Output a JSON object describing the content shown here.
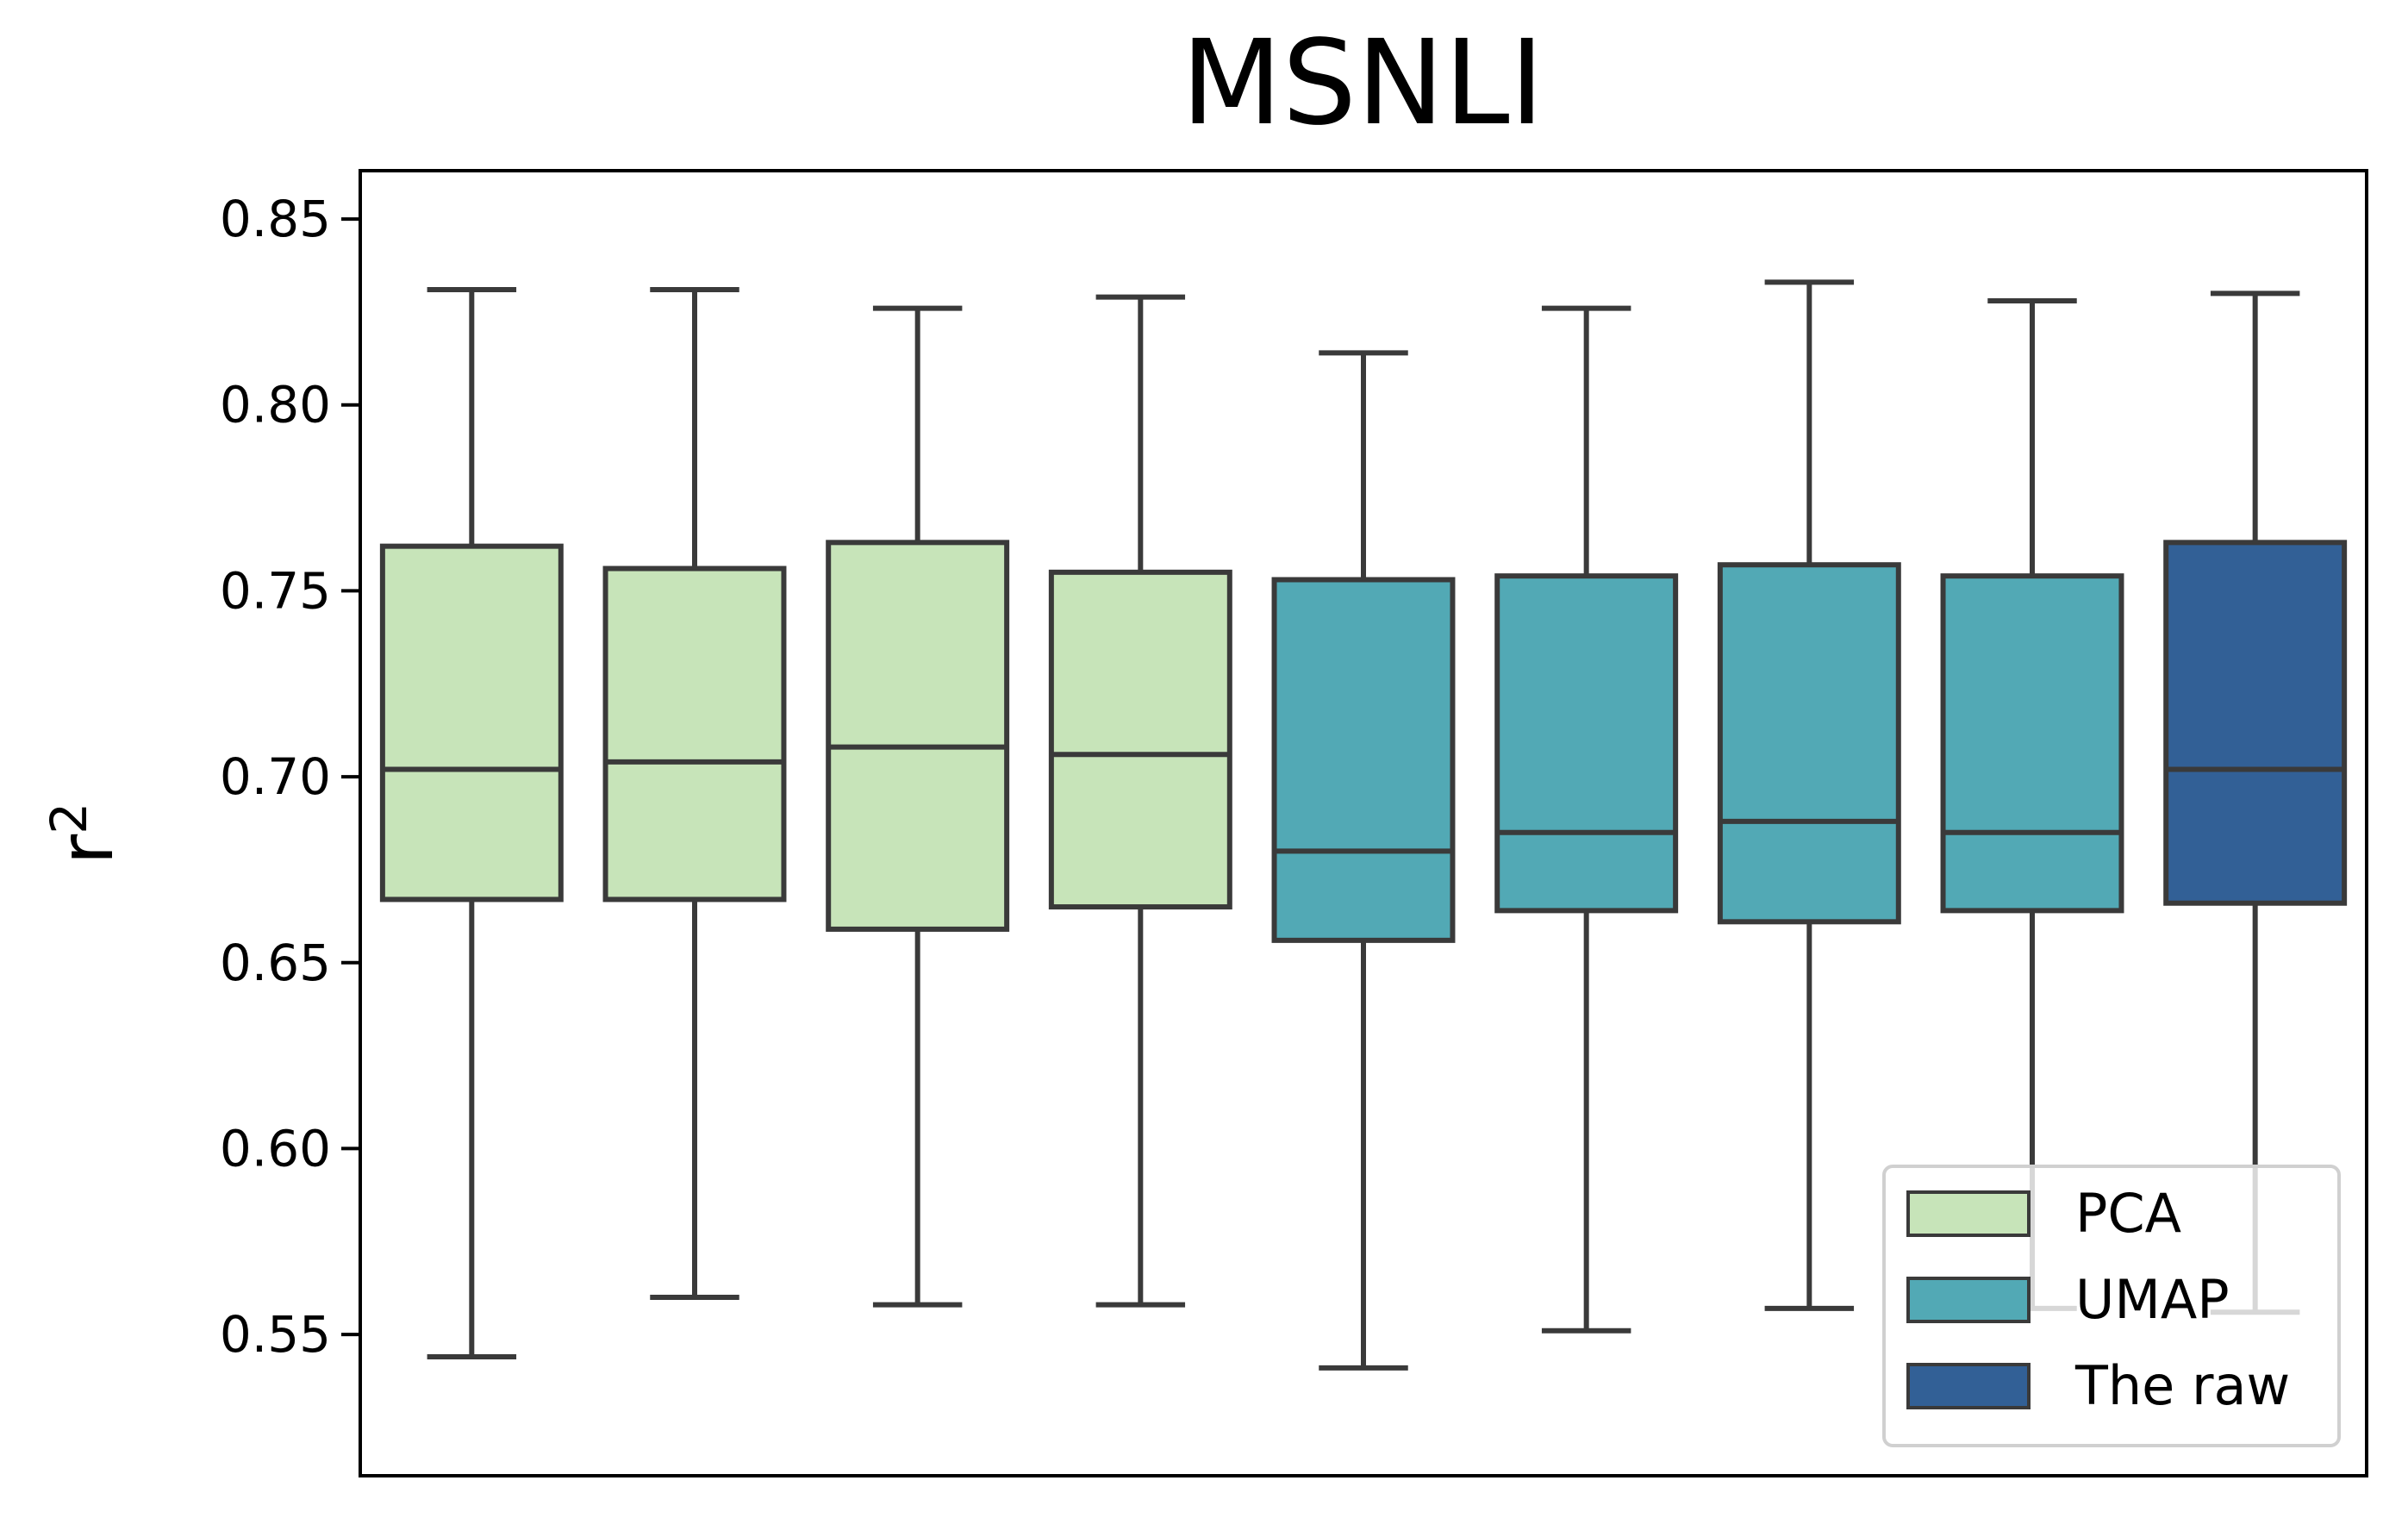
{
  "chart_data": {
    "type": "box",
    "title": "MSNLI",
    "xlabel": "",
    "ylabel": "r",
    "ylabel_superscript": "2",
    "ylim": [
      0.512,
      0.863
    ],
    "yticks": [
      0.55,
      0.6,
      0.65,
      0.7,
      0.75,
      0.8,
      0.85
    ],
    "ytick_labels": [
      "0.55",
      "0.60",
      "0.65",
      "0.70",
      "0.75",
      "0.80",
      "0.85"
    ],
    "grid": false,
    "legend_position": "lower-right",
    "legend": [
      {
        "label": "PCA",
        "color": "#c7e4b9"
      },
      {
        "label": "UMAP",
        "color": "#52a9b5"
      },
      {
        "label": "The raw",
        "color": "#326096"
      }
    ],
    "boxes": [
      {
        "group": "PCA",
        "whisker_low": 0.544,
        "q1": 0.667,
        "median": 0.702,
        "q3": 0.762,
        "whisker_high": 0.831
      },
      {
        "group": "PCA",
        "whisker_low": 0.56,
        "q1": 0.667,
        "median": 0.704,
        "q3": 0.756,
        "whisker_high": 0.831
      },
      {
        "group": "PCA",
        "whisker_low": 0.558,
        "q1": 0.659,
        "median": 0.708,
        "q3": 0.763,
        "whisker_high": 0.826
      },
      {
        "group": "PCA",
        "whisker_low": 0.558,
        "q1": 0.665,
        "median": 0.706,
        "q3": 0.755,
        "whisker_high": 0.829
      },
      {
        "group": "UMAP",
        "whisker_low": 0.541,
        "q1": 0.656,
        "median": 0.68,
        "q3": 0.753,
        "whisker_high": 0.814
      },
      {
        "group": "UMAP",
        "whisker_low": 0.551,
        "q1": 0.664,
        "median": 0.685,
        "q3": 0.754,
        "whisker_high": 0.826
      },
      {
        "group": "UMAP",
        "whisker_low": 0.557,
        "q1": 0.661,
        "median": 0.688,
        "q3": 0.757,
        "whisker_high": 0.833
      },
      {
        "group": "UMAP",
        "whisker_low": 0.557,
        "q1": 0.664,
        "median": 0.685,
        "q3": 0.754,
        "whisker_high": 0.828
      },
      {
        "group": "The raw",
        "whisker_low": 0.556,
        "q1": 0.666,
        "median": 0.702,
        "q3": 0.763,
        "whisker_high": 0.83
      }
    ],
    "colors": {
      "edge": "#3a3a3a",
      "axis": "#000000",
      "background": "#ffffff"
    }
  }
}
